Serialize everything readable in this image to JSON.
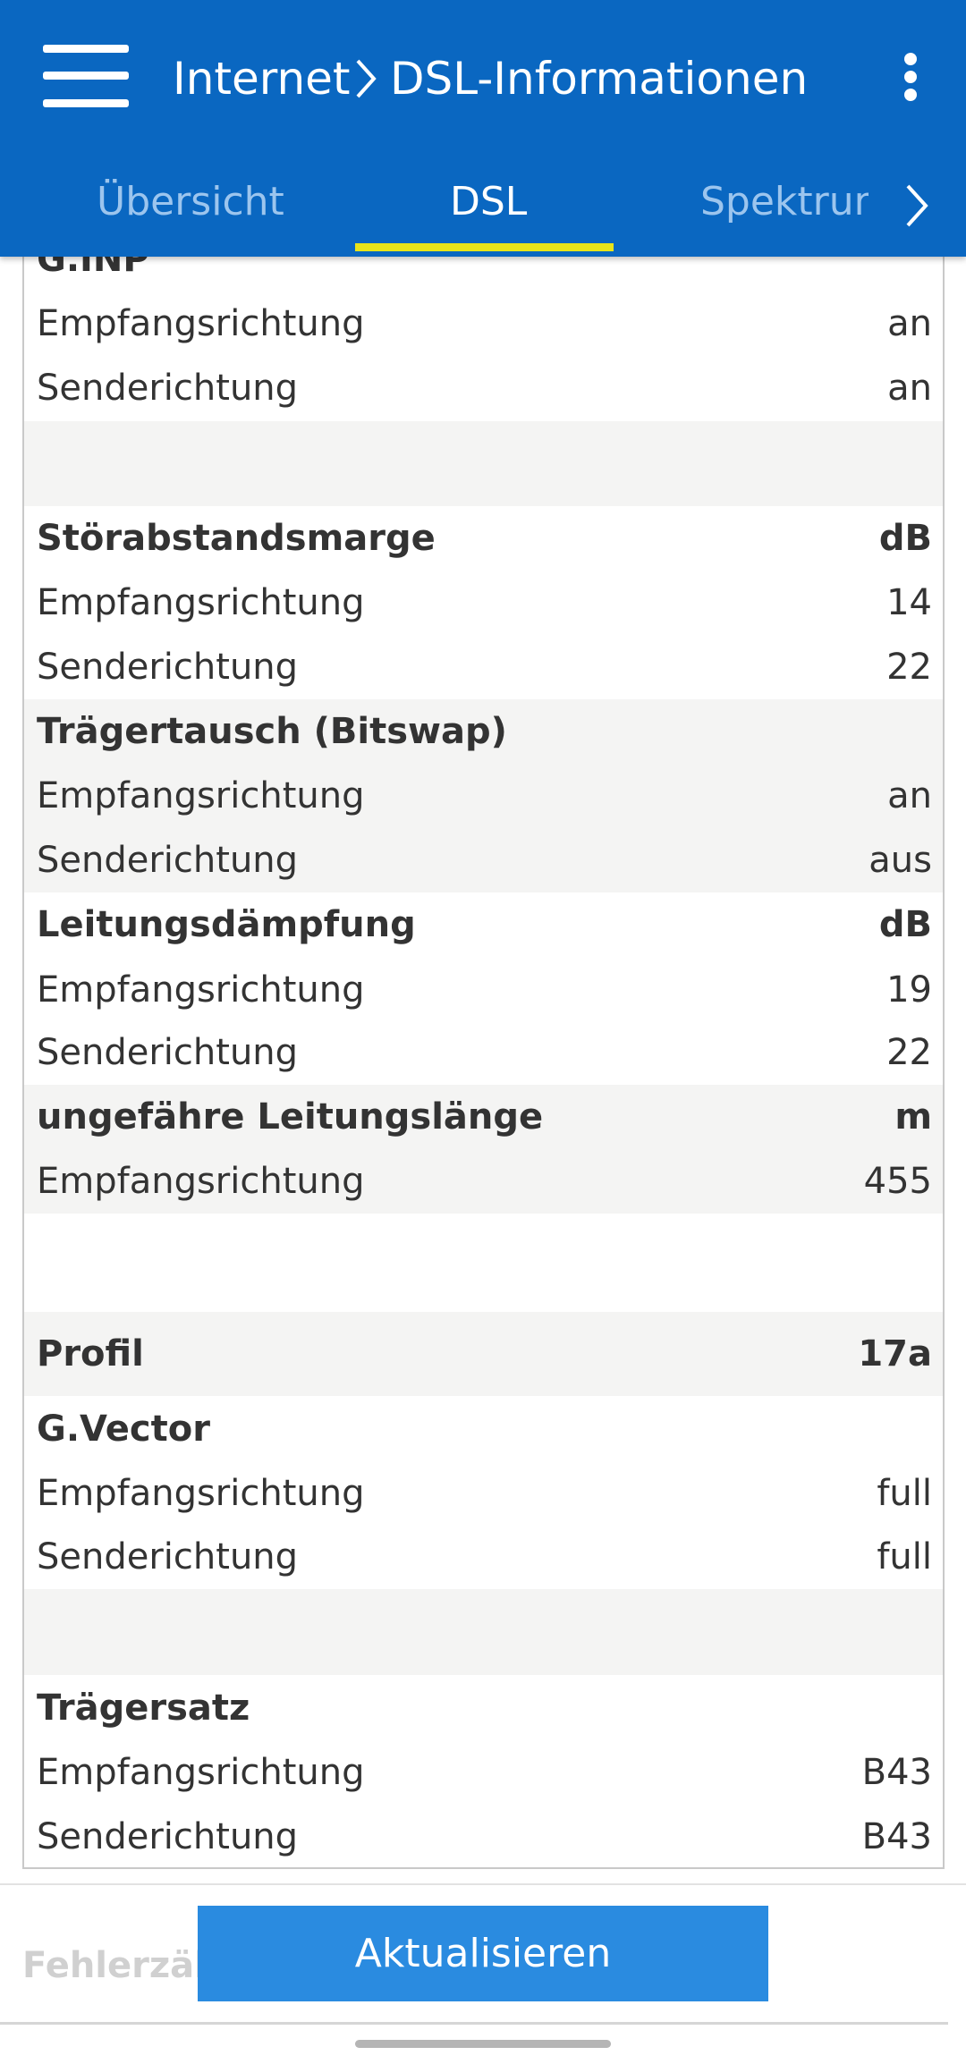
{
  "header": {
    "breadcrumb": [
      "Internet",
      "DSL-Informationen"
    ]
  },
  "tabs": [
    "Übersicht",
    "DSL",
    "Spektrum"
  ],
  "table": {
    "rows": [
      [
        "G.INP"
      ],
      [
        "Empfangsrichtung",
        "an"
      ],
      [
        "Senderichtung",
        "an"
      ],
      [
        "Störabstandsmarge",
        "dB"
      ],
      [
        "Empfangsrichtung",
        14
      ],
      [
        "Senderichtung",
        22
      ],
      [
        "Trägertausch (Bitswap)"
      ],
      [
        "Empfangsrichtung",
        "an"
      ],
      [
        "Senderichtung",
        "aus"
      ],
      [
        "Leitungsdämpfung",
        "dB"
      ],
      [
        "Empfangsrichtung",
        19
      ],
      [
        "Senderichtung",
        22
      ],
      [
        "ungefähre Leitungslänge",
        "m"
      ],
      [
        "Empfangsrichtung",
        455
      ],
      [
        "Profil",
        "17a"
      ],
      [
        "G.Vector"
      ],
      [
        "Empfangsrichtung",
        "full"
      ],
      [
        "Senderichtung",
        "full"
      ],
      [
        "Trägersatz"
      ],
      [
        "Empfangsrichtung",
        "B43"
      ],
      [
        "Senderichtung",
        "B43"
      ]
    ]
  },
  "footer": {
    "partial_label": "Fehlerzäh",
    "button": "Aktualisieren"
  }
}
